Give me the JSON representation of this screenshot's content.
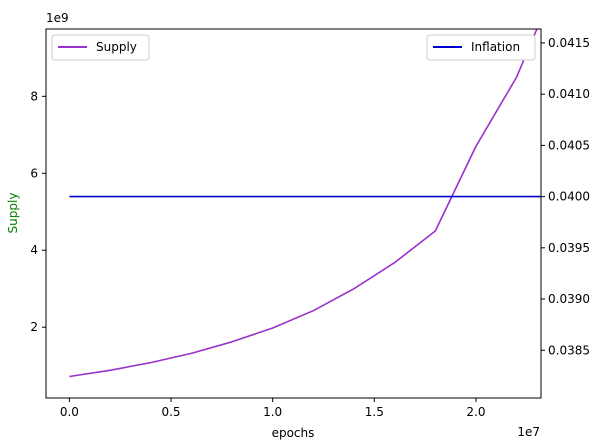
{
  "chart_data": {
    "type": "line",
    "xlabel": "epochs",
    "x_offset_label": "1e7",
    "ylabel_left": "Supply",
    "ylabel_left_color": "#008000",
    "y_left_offset_label": "1e9",
    "xlim": [
      -1150000,
      23200000
    ],
    "ylim_left": [
      160000000,
      9750000000
    ],
    "ylim_right": [
      0.038034,
      0.041636
    ],
    "x_ticks": [
      0,
      5000000,
      10000000,
      15000000,
      20000000
    ],
    "x_tick_labels": [
      "0.0",
      "0.5",
      "1.0",
      "1.5",
      "2.0"
    ],
    "y_left_ticks": [
      2000000000,
      4000000000,
      6000000000,
      8000000000
    ],
    "y_left_tick_labels": [
      "2",
      "4",
      "6",
      "8"
    ],
    "y_right_ticks": [
      0.0385,
      0.039,
      0.0395,
      0.04,
      0.0405,
      0.041,
      0.0415
    ],
    "y_right_tick_labels": [
      "0.0385",
      "0.0390",
      "0.0395",
      "0.0400",
      "0.0405",
      "0.0410",
      "0.0415"
    ],
    "series": [
      {
        "name": "Supply",
        "axis": "left",
        "color": "#9932cc",
        "x": [
          0,
          2000000,
          4000000,
          6000000,
          8000000,
          10000000,
          12000000,
          14000000,
          16000000,
          18000000,
          20000000,
          22000000,
          23000000
        ],
        "y": [
          720000000,
          880000000,
          1080000000,
          1320000000,
          1620000000,
          1980000000,
          2430000000,
          3000000000,
          3680000000,
          4500000000,
          6700000000,
          8500000000,
          9750000000
        ]
      },
      {
        "name": "Inflation",
        "axis": "right",
        "color": "#0000cd",
        "x": [
          0,
          23200000
        ],
        "y": [
          0.04,
          0.04
        ]
      }
    ],
    "legend_left": {
      "placement": "upper-left",
      "label": "Supply"
    },
    "legend_right": {
      "placement": "upper-right",
      "label": "Inflation"
    },
    "grid": false
  }
}
